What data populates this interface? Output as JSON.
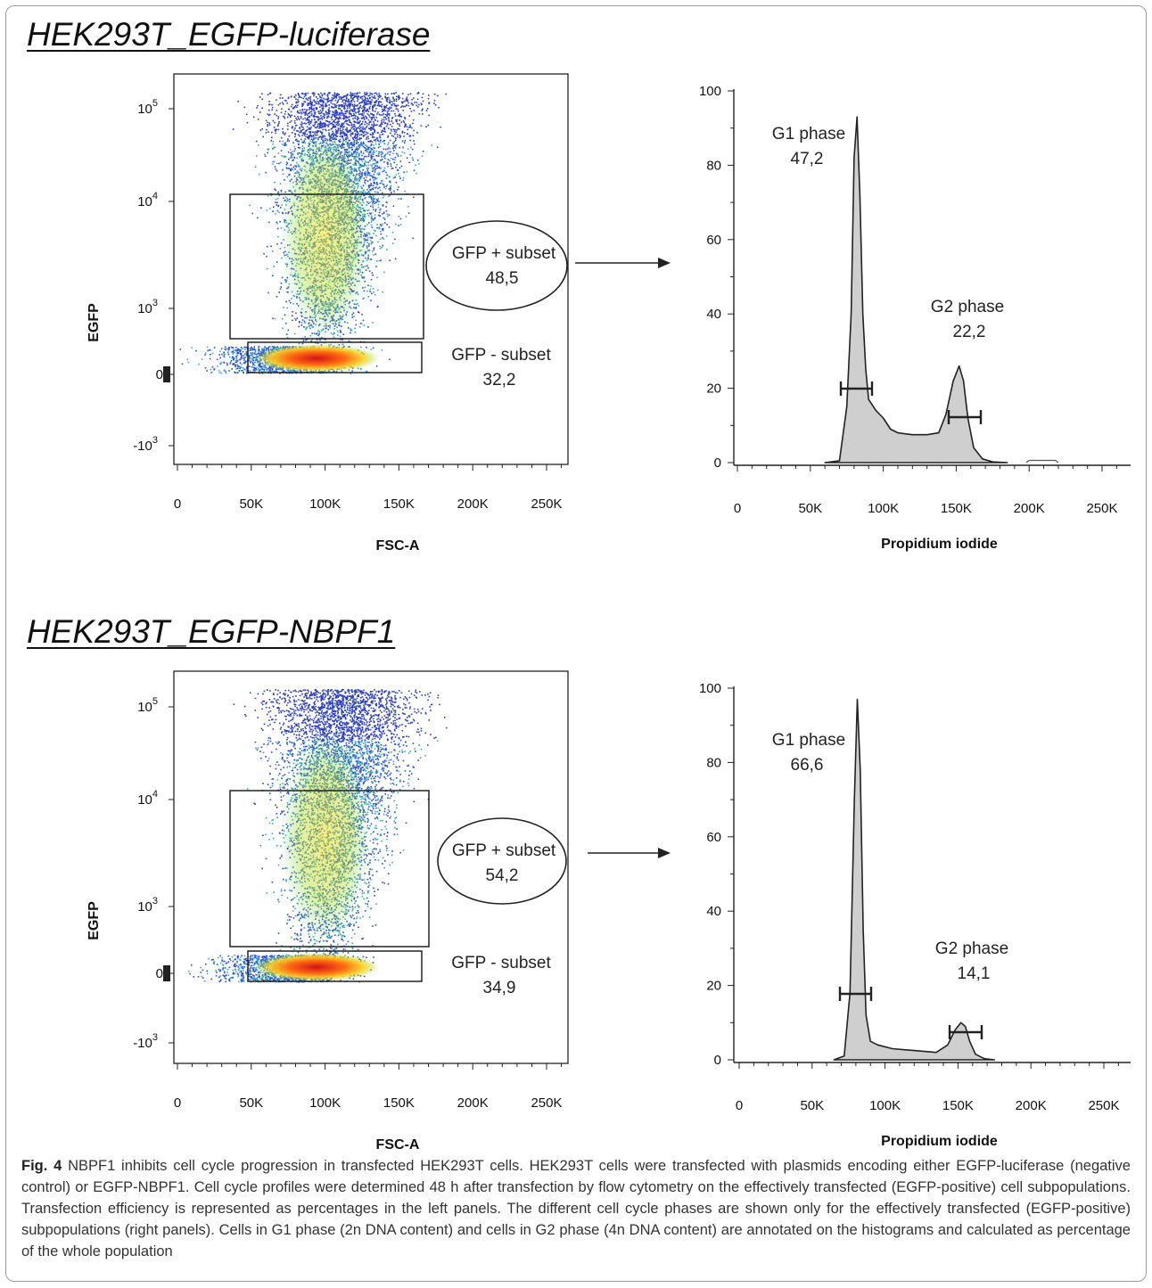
{
  "panels": [
    {
      "title": "HEK293T_EGFP-luciferase",
      "scatter": {
        "xlabel": "FSC-A",
        "ylabel": "EGFP",
        "x_ticks": [
          "0",
          "50K",
          "100K",
          "150K",
          "200K",
          "250K"
        ],
        "y_ticks": [
          {
            "base": "10",
            "exp": "5"
          },
          {
            "base": "10",
            "exp": "4"
          },
          {
            "base": "10",
            "exp": "3"
          },
          {
            "base": "0",
            "exp": ""
          },
          {
            "base": "-10",
            "exp": "3"
          }
        ],
        "gates": [
          {
            "name": "GFP + subset",
            "value": "48,5"
          },
          {
            "name": "GFP - subset",
            "value": "32,2"
          }
        ]
      },
      "histogram": {
        "xlabel": "Propidium iodide",
        "x_ticks": [
          "0",
          "50K",
          "100K",
          "150K",
          "200K",
          "250K"
        ],
        "y_ticks": [
          "100",
          "80",
          "60",
          "40",
          "20",
          "0"
        ],
        "g1": {
          "label": "G1 phase",
          "value": "47,2"
        },
        "g2": {
          "label": "G2 phase",
          "value": "22,2"
        }
      }
    },
    {
      "title": "HEK293T_EGFP-NBPF1",
      "scatter": {
        "xlabel": "FSC-A",
        "ylabel": "EGFP",
        "x_ticks": [
          "0",
          "50K",
          "100K",
          "150K",
          "200K",
          "250K"
        ],
        "y_ticks": [
          {
            "base": "10",
            "exp": "5"
          },
          {
            "base": "10",
            "exp": "4"
          },
          {
            "base": "10",
            "exp": "3"
          },
          {
            "base": "0",
            "exp": ""
          },
          {
            "base": "-10",
            "exp": "3"
          }
        ],
        "gates": [
          {
            "name": "GFP + subset",
            "value": "54,2"
          },
          {
            "name": "GFP - subset",
            "value": "34,9"
          }
        ]
      },
      "histogram": {
        "xlabel": "Propidium iodide",
        "x_ticks": [
          "0",
          "50K",
          "100K",
          "150K",
          "200K",
          "250K"
        ],
        "y_ticks": [
          "100",
          "80",
          "60",
          "40",
          "20",
          "0"
        ],
        "g1": {
          "label": "G1 phase",
          "value": "66,6"
        },
        "g2": {
          "label": "G2 phase",
          "value": "14,1"
        }
      }
    }
  ],
  "caption": {
    "label": "Fig. 4",
    "text": " NBPF1 inhibits cell cycle progression in transfected HEK293T cells. HEK293T cells were transfected with plasmids encoding either EGFP-luciferase (negative control) or EGFP-NBPF1. Cell cycle profiles were determined 48 h after transfection by flow cytometry on the effectively transfected (EGFP-positive) cell subpopulations. Transfection efficiency is represented as percentages in the left panels. The different cell cycle phases are shown only for the effectively transfected (EGFP-positive) subpopulations (right panels). Cells in G1 phase (2n DNA content) and cells in G2 phase (4n DNA content) are annotated on the histograms and calculated as percentage of the whole population"
  },
  "chart_data": [
    {
      "type": "scatter",
      "title": "HEK293T_EGFP-luciferase",
      "xlabel": "FSC-A",
      "ylabel": "EGFP",
      "x_ticks": [
        "0",
        "50K",
        "100K",
        "150K",
        "200K",
        "250K"
      ],
      "y_scale": "biexponential",
      "gates": [
        {
          "name": "GFP + subset",
          "percent": 48.5
        },
        {
          "name": "GFP - subset",
          "percent": 32.2
        }
      ]
    },
    {
      "type": "area",
      "title": "HEK293T_EGFP-luciferase",
      "xlabel": "Propidium iodide",
      "xlim": [
        0,
        260000
      ],
      "ylim": [
        0,
        100
      ],
      "x": [
        60000,
        70000,
        75000,
        78000,
        80000,
        82000,
        84000,
        86000,
        88000,
        90000,
        95000,
        100000,
        110000,
        120000,
        130000,
        138000,
        143000,
        148000,
        152000,
        155000,
        158000,
        162000,
        168000,
        175000,
        185000
      ],
      "y": [
        0,
        0.5,
        15,
        40,
        82,
        93,
        72,
        40,
        25,
        17,
        14,
        12,
        8,
        7.5,
        7.5,
        8,
        13,
        22,
        26,
        22,
        12,
        4,
        1,
        0.2,
        0
      ],
      "gates": [
        {
          "name": "G1 phase",
          "percent": 47.2,
          "range": [
            71000,
            91000
          ]
        },
        {
          "name": "G2 phase",
          "percent": 22.2,
          "range": [
            139000,
            161000
          ]
        }
      ]
    },
    {
      "type": "scatter",
      "title": "HEK293T_EGFP-NBPF1",
      "xlabel": "FSC-A",
      "ylabel": "EGFP",
      "x_ticks": [
        "0",
        "50K",
        "100K",
        "150K",
        "200K",
        "250K"
      ],
      "y_scale": "biexponential",
      "gates": [
        {
          "name": "GFP + subset",
          "percent": 54.2
        },
        {
          "name": "GFP - subset",
          "percent": 34.9
        }
      ]
    },
    {
      "type": "area",
      "title": "HEK293T_EGFP-NBPF1",
      "xlabel": "Propidium iodide",
      "xlim": [
        0,
        260000
      ],
      "ylim": [
        0,
        100
      ],
      "x": [
        65000,
        72000,
        76000,
        79000,
        81000,
        83000,
        85000,
        87000,
        90000,
        95000,
        105000,
        120000,
        135000,
        143000,
        148000,
        152000,
        155000,
        158000,
        162000,
        168000,
        175000
      ],
      "y": [
        0,
        1,
        18,
        70,
        97,
        78,
        35,
        12,
        5,
        4,
        3,
        2.5,
        2,
        4,
        8,
        10,
        9,
        5,
        1.5,
        0.3,
        0
      ]
    }
  ]
}
